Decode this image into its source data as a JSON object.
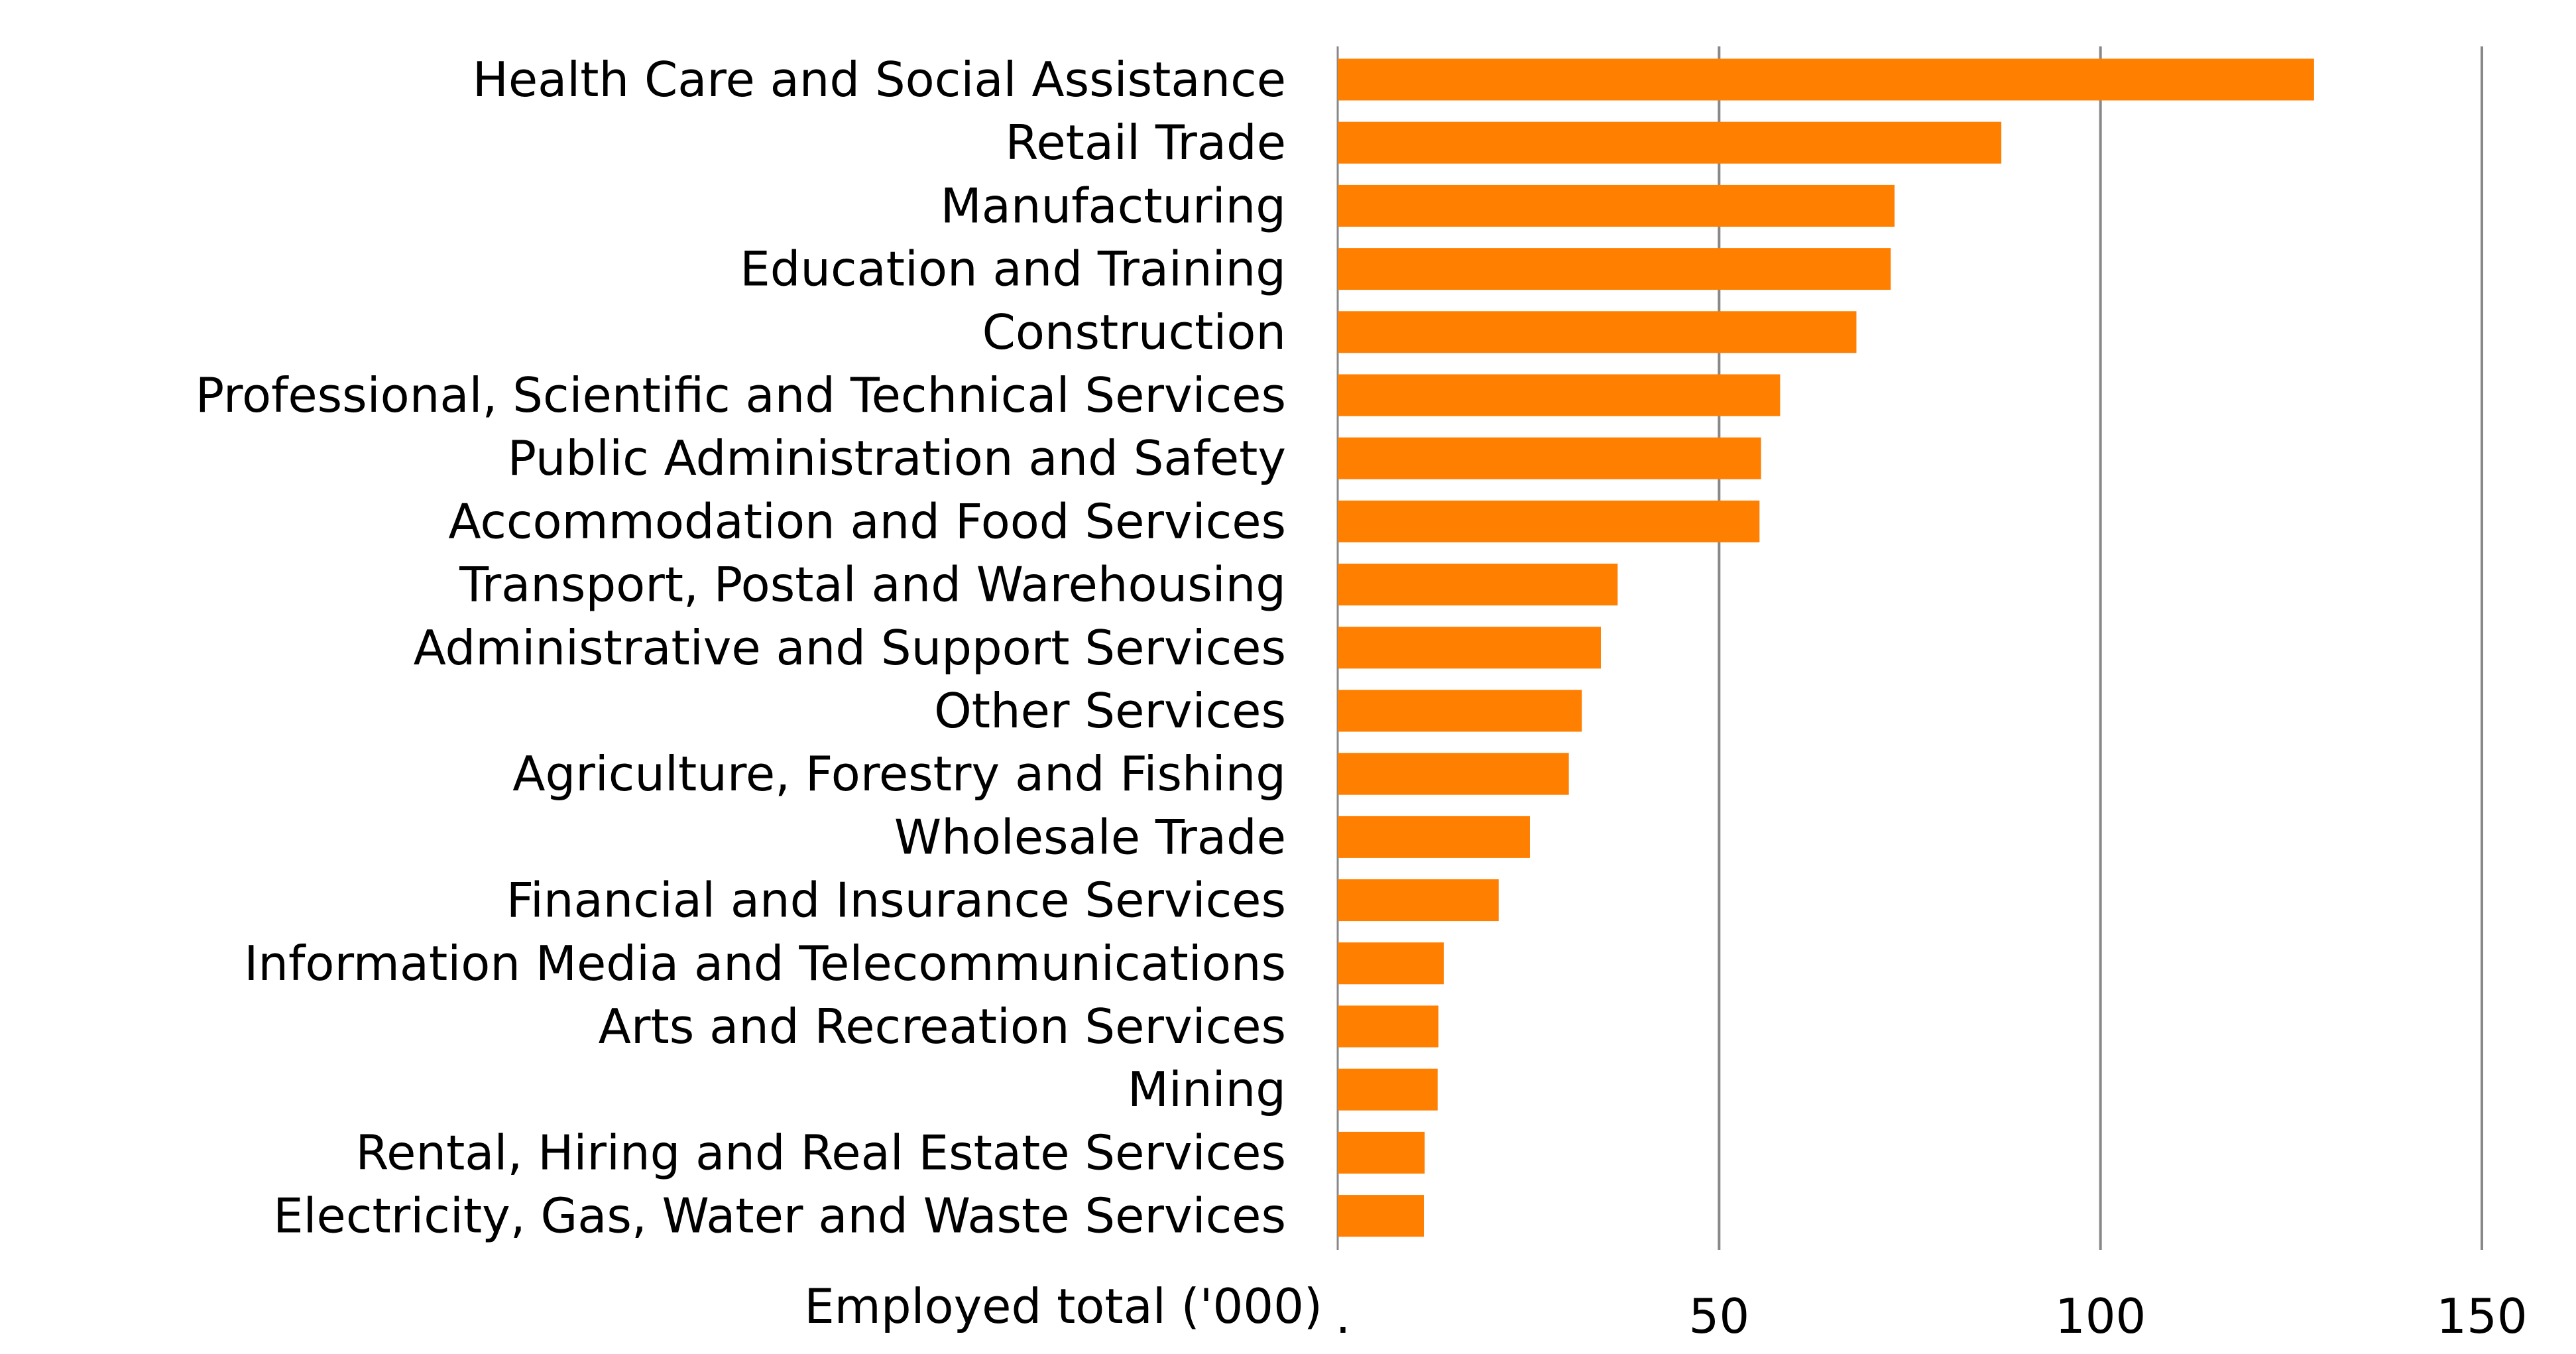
{
  "chart_data": {
    "type": "bar",
    "orientation": "horizontal",
    "categories": [
      "Health Care and Social Assistance",
      "Retail Trade",
      "Manufacturing",
      "Education and Training",
      "Construction",
      "Professional, Scientific and Technical Services",
      "Public Administration and Safety",
      "Accommodation and Food Services",
      "Transport, Postal and Warehousing",
      "Administrative and Support Services",
      "Other Services",
      "Agriculture, Forestry and Fishing",
      "Wholesale Trade",
      "Financial and Insurance Services",
      "Information Media and Telecommunications",
      "Arts and Recreation Services",
      "Mining",
      "Rental, Hiring and Real Estate Services",
      "Electricity, Gas, Water and Waste Services"
    ],
    "values": [
      128,
      87,
      73,
      72.5,
      68,
      58,
      55.5,
      55.3,
      36.7,
      34.5,
      32,
      30.3,
      25.2,
      21.1,
      13.9,
      13.2,
      13.1,
      11.4,
      11.3
    ],
    "xlabel": "Employed total ('000)",
    "title": "",
    "xlim": [
      0,
      150
    ],
    "xticks": [
      0,
      50,
      100,
      150
    ],
    "xtick_labels": [
      ".",
      "50",
      "100",
      "150"
    ],
    "grid": "vertical",
    "legend": "none",
    "bar_color": "#ff7f00",
    "grid_color": "#888888"
  }
}
